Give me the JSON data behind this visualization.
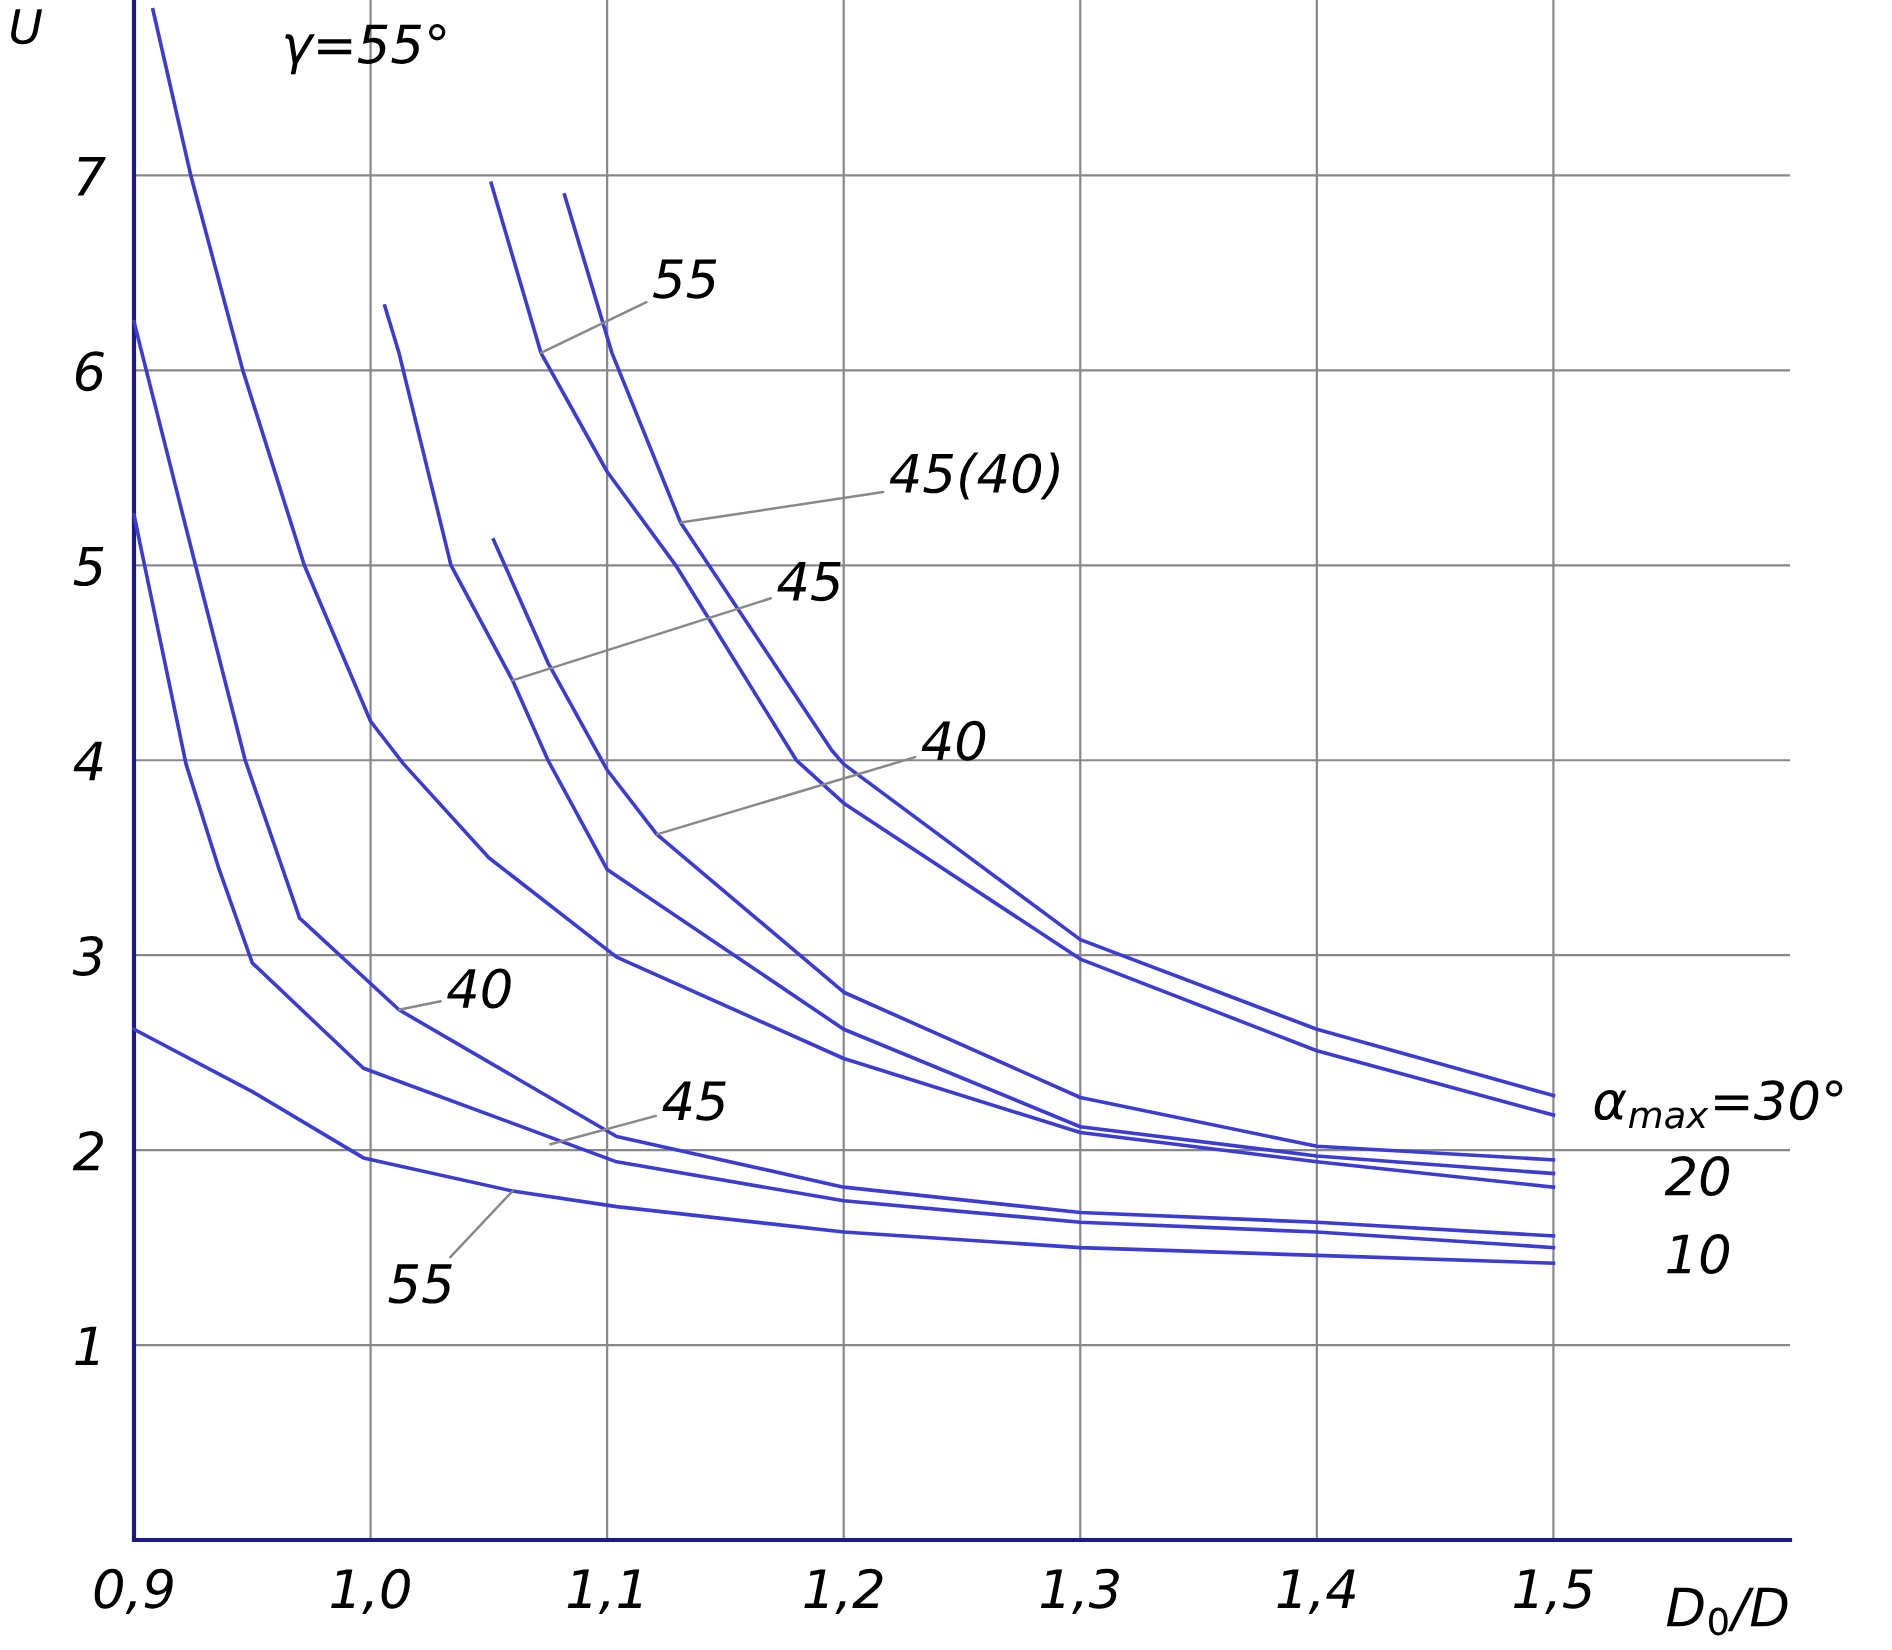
{
  "chart_data": {
    "type": "line",
    "xlabel": "D$_{0}$/D",
    "ylabel": "U",
    "xlim": [
      0.9,
      1.6
    ],
    "ylim": [
      0,
      7.9
    ],
    "xticks": [
      {
        "value": 0.9,
        "label": "0,9"
      },
      {
        "value": 1.0,
        "label": "1,0"
      },
      {
        "value": 1.1,
        "label": "1,1"
      },
      {
        "value": 1.2,
        "label": "1,2"
      },
      {
        "value": 1.3,
        "label": "1,3"
      },
      {
        "value": 1.4,
        "label": "1,4"
      },
      {
        "value": 1.5,
        "label": "1,5"
      }
    ],
    "yticks": [
      1,
      2,
      3,
      4,
      5,
      6,
      7
    ],
    "grid": true,
    "legend": false,
    "marker": "none",
    "line_style": "solid",
    "series": [
      {
        "color": "#3c3cd2",
        "x": [
          1.082,
          1.102,
          1.131,
          1.195,
          1.2,
          1.3,
          1.4,
          1.5
        ],
        "values": [
          6.9,
          6.09,
          5.22,
          4.05,
          3.98,
          3.08,
          2.62,
          2.28
        ]
      },
      {
        "color": "#3c3cd2",
        "x": [
          1.051,
          1.072,
          1.1,
          1.129,
          1.18,
          1.2,
          1.3,
          1.4,
          1.5
        ],
        "values": [
          6.96,
          6.09,
          5.48,
          5.0,
          4.0,
          3.78,
          2.98,
          2.51,
          2.18
        ]
      },
      {
        "color": "#3c3cd2",
        "x": [
          1.052,
          1.075,
          1.1,
          1.121,
          1.2,
          1.3,
          1.4,
          1.5
        ],
        "values": [
          5.13,
          4.5,
          3.95,
          3.62,
          2.81,
          2.27,
          2.02,
          1.95
        ]
      },
      {
        "color": "#3c3cd2",
        "x": [
          1.006,
          1.012,
          1.034,
          1.06,
          1.075,
          1.1,
          1.2,
          1.3,
          1.4,
          1.5
        ],
        "values": [
          6.33,
          6.09,
          5.0,
          4.41,
          4.0,
          3.44,
          2.62,
          2.12,
          1.97,
          1.88
        ]
      },
      {
        "color": "#3c3cd2",
        "x": [
          0.908,
          0.924,
          0.946,
          0.972,
          1.0,
          1.014,
          1.05,
          1.104,
          1.2,
          1.3,
          1.4,
          1.5
        ],
        "values": [
          7.85,
          7.0,
          6.0,
          5.0,
          4.2,
          3.98,
          3.5,
          2.99,
          2.47,
          2.09,
          1.94,
          1.81
        ]
      },
      {
        "color": "#3c3cd2",
        "x": [
          0.9,
          0.926,
          0.947,
          0.97,
          1.012,
          1.104,
          1.2,
          1.3,
          1.4,
          1.5
        ],
        "values": [
          6.25,
          5.0,
          4.0,
          3.19,
          2.72,
          2.07,
          1.81,
          1.68,
          1.63,
          1.56
        ]
      },
      {
        "color": "#3c3cd2",
        "x": [
          0.9,
          0.922,
          0.936,
          0.95,
          0.997,
          1.104,
          1.2,
          1.3,
          1.4,
          1.5
        ],
        "values": [
          5.26,
          3.98,
          3.44,
          2.96,
          2.42,
          1.94,
          1.74,
          1.63,
          1.58,
          1.5
        ]
      },
      {
        "color": "#3c3cd2",
        "x": [
          0.9,
          0.95,
          0.997,
          1.06,
          1.104,
          1.2,
          1.3,
          1.4,
          1.5
        ],
        "values": [
          2.62,
          2.3,
          1.96,
          1.79,
          1.71,
          1.58,
          1.5,
          1.46,
          1.42
        ]
      }
    ],
    "annotations": [
      "γ=55°",
      {
        "text": "55",
        "x": 1.072,
        "y": 6.09
      },
      {
        "text": "45(40)",
        "x": 1.131,
        "y": 5.22
      },
      {
        "text": "45",
        "x": 1.06,
        "y": 4.41
      },
      {
        "text": "40",
        "x": 1.012,
        "y": 2.72
      },
      {
        "text": "40",
        "x": 1.121,
        "y": 3.62
      },
      {
        "text": "45",
        "x": 1.076,
        "y": 2.03
      },
      {
        "text": "55",
        "x": 1.06,
        "y": 1.79
      },
      {
        "text": "α$_{max}$=30°",
        "x": 1.5,
        "y": 2.23
      },
      {
        "text": "20",
        "x": 1.5,
        "y": 1.9
      },
      {
        "text": "10",
        "x": 1.5,
        "y": 1.5
      }
    ]
  }
}
